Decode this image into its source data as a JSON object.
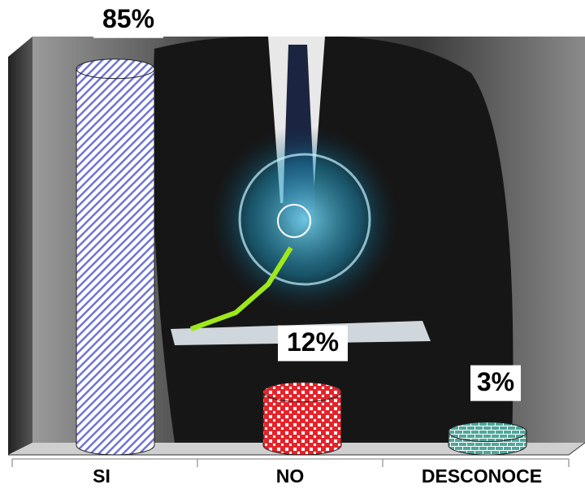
{
  "chart_data": {
    "type": "cylinder",
    "categories": [
      "SI",
      "NO",
      "DESCONOCE"
    ],
    "values": [
      85,
      12,
      3
    ],
    "value_labels": [
      "85%",
      "12%",
      "3%"
    ],
    "colors": [
      "#6f74d8",
      "#e3242b",
      "#4fa89c"
    ]
  }
}
